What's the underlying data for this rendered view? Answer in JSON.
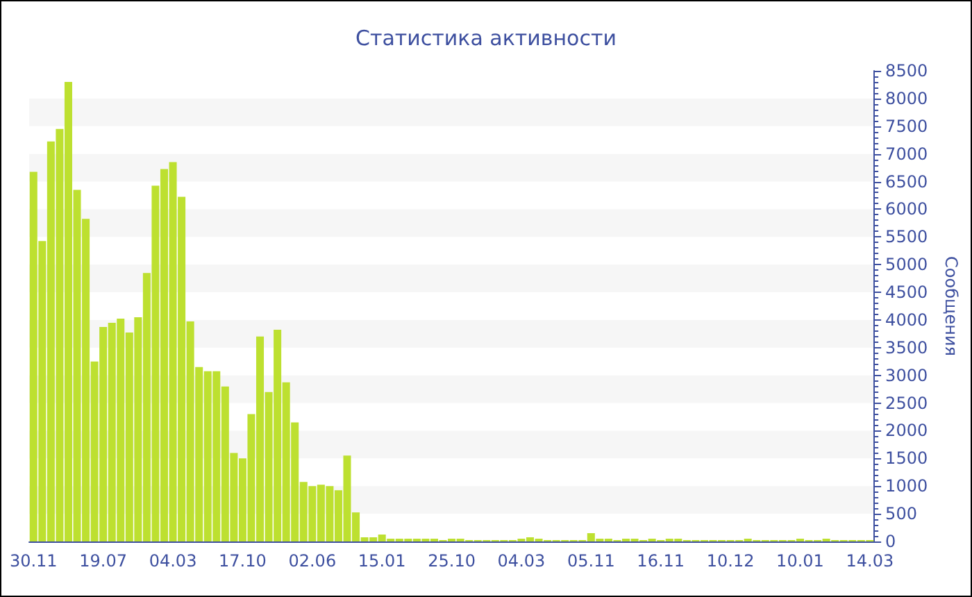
{
  "chart_data": {
    "type": "bar",
    "title": "Статистика активности",
    "ylabel": "Сообщения",
    "categories": [
      "30.11",
      null,
      null,
      null,
      null,
      null,
      null,
      null,
      "19.07",
      null,
      null,
      null,
      null,
      null,
      null,
      null,
      "04.03",
      null,
      null,
      null,
      null,
      null,
      null,
      null,
      "17.10",
      null,
      null,
      null,
      null,
      null,
      null,
      null,
      "02.06",
      null,
      null,
      null,
      null,
      null,
      null,
      null,
      "15.01",
      null,
      null,
      null,
      null,
      null,
      null,
      null,
      "25.10",
      null,
      null,
      null,
      null,
      null,
      null,
      null,
      "04.03",
      null,
      null,
      null,
      null,
      null,
      null,
      null,
      "05.11",
      null,
      null,
      null,
      null,
      null,
      null,
      null,
      "16.11",
      null,
      null,
      null,
      null,
      null,
      null,
      null,
      "10.12",
      null,
      null,
      null,
      null,
      null,
      null,
      null,
      "10.01",
      null,
      null,
      null,
      null,
      null,
      null,
      null,
      "14.03"
    ],
    "values": [
      6675,
      5425,
      7225,
      7450,
      8300,
      6350,
      5825,
      3250,
      3875,
      3950,
      4025,
      3775,
      4050,
      4850,
      6425,
      6725,
      6850,
      6225,
      3975,
      3150,
      3075,
      3075,
      2800,
      1600,
      1500,
      2300,
      3700,
      2700,
      3825,
      2875,
      2150,
      1075,
      1000,
      1025,
      1000,
      925,
      1550,
      525,
      75,
      75,
      125,
      50,
      50,
      50,
      50,
      50,
      50,
      25,
      50,
      50,
      25,
      25,
      25,
      25,
      25,
      25,
      50,
      75,
      50,
      25,
      25,
      25,
      25,
      25,
      150,
      50,
      50,
      25,
      50,
      50,
      25,
      50,
      25,
      50,
      50,
      25,
      25,
      25,
      25,
      25,
      25,
      25,
      50,
      25,
      25,
      25,
      25,
      25,
      50,
      25,
      25,
      50,
      25,
      25,
      25,
      25,
      25
    ],
    "color": "#bde030",
    "ylim": [
      0,
      8500
    ],
    "yticks": [
      0,
      500,
      1000,
      1500,
      2000,
      2500,
      3000,
      3500,
      4000,
      4500,
      5000,
      5500,
      6000,
      6500,
      7000,
      7500,
      8000,
      8500
    ]
  }
}
